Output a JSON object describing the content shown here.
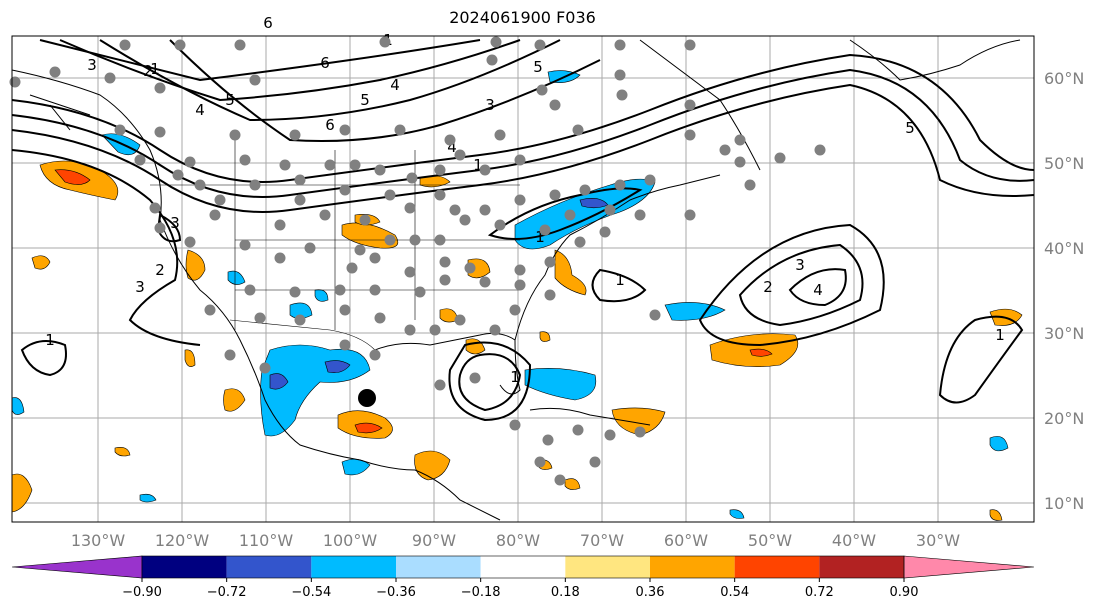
{
  "title": "2024061900 F036",
  "lon_labels": [
    "130°W",
    "120°W",
    "110°W",
    "100°W",
    "90°W",
    "80°W",
    "70°W",
    "60°W",
    "50°W",
    "40°W",
    "30°W"
  ],
  "lat_labels": [
    "60°N",
    "50°N",
    "40°N",
    "30°N",
    "20°N",
    "10°N"
  ],
  "contour_labels": [
    "1",
    "2",
    "3",
    "4",
    "5",
    "6",
    "1",
    "3",
    "4",
    "5",
    "6",
    "4",
    "5",
    "1",
    "1",
    "3",
    "2",
    "3",
    "4",
    "1",
    "1",
    "5",
    "1",
    "1",
    "3",
    "6",
    "2"
  ],
  "colorbar": {
    "tick_labels": [
      "−0.90",
      "−0.72",
      "−0.54",
      "−0.36",
      "−0.18",
      "0.18",
      "0.36",
      "0.54",
      "0.72",
      "0.90"
    ],
    "colors": [
      "#9933cc",
      "#000080",
      "#3355cc",
      "#00bbff",
      "#aaddff",
      "#ffffff",
      "#ffe680",
      "#ffa500",
      "#ff4400",
      "#b22222",
      "#ff88aa"
    ],
    "min_arrow_color": "#9933cc",
    "max_arrow_color": "#ff88aa"
  },
  "colors": {
    "negative_strong": "#3355cc",
    "negative": "#00bbff",
    "positive": "#ffa500",
    "positive_strong": "#ff4400",
    "station_dot": "#808080",
    "storm_marker": "#000000"
  }
}
